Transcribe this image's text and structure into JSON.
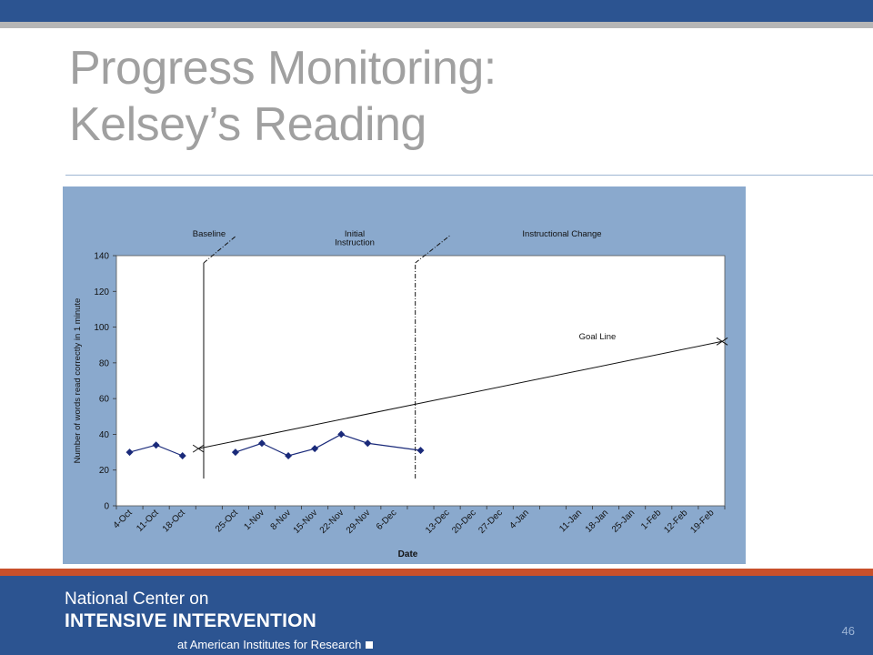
{
  "slide": {
    "title_line1": "Progress Monitoring:",
    "title_line2": "Kelsey’s Reading",
    "page_number": "46"
  },
  "footer": {
    "line1": "National Center on",
    "line2": "INTENSIVE INTERVENTION",
    "line3": "at American Institutes for Research"
  },
  "colors": {
    "header_bar": "#2c5491",
    "accent_stripe": "#c8502b",
    "chart_panel": "#8aa9cd",
    "data_marker": "#1a2a7a"
  },
  "chart_data": {
    "type": "line",
    "xlabel": "Date",
    "ylabel": "Number of words read correctly in 1 minute",
    "ylim": [
      0,
      140
    ],
    "yticks": [
      0,
      20,
      40,
      60,
      80,
      100,
      120,
      140
    ],
    "categories": [
      "4-Oct",
      "11-Oct",
      "18-Oct",
      "25-Oct",
      "1-Nov",
      "8-Nov",
      "15-Nov",
      "22-Nov",
      "29-Nov",
      "6-Dec",
      "13-Dec",
      "20-Dec",
      "27-Dec",
      "4-Jan",
      "11-Jan",
      "18-Jan",
      "25-Jan",
      "1-Feb",
      "12-Feb",
      "19-Feb"
    ],
    "x_slots": [
      0,
      1,
      2,
      4,
      5,
      6,
      7,
      8,
      9,
      10,
      12,
      13,
      14,
      15,
      17,
      18,
      19,
      20,
      21,
      22
    ],
    "slot_count": 23,
    "series": [
      {
        "segments": [
          {
            "x": [
              "4-Oct",
              "11-Oct",
              "18-Oct"
            ],
            "y": [
              30,
              34,
              28
            ]
          },
          {
            "x": [
              "1-Nov",
              "8-Nov",
              "15-Nov",
              "22-Nov",
              "29-Nov",
              "6-Dec",
              "13-Dec"
            ],
            "y": [
              30,
              35,
              28,
              32,
              40,
              35,
              31
            ]
          }
        ]
      }
    ],
    "goal_line": {
      "label": "Goal Line",
      "start": 32,
      "end": 92
    },
    "phases": [
      {
        "label": "Baseline"
      },
      {
        "label": "Initial\nInstruction"
      },
      {
        "label": "Instructional Change"
      }
    ],
    "grid": false,
    "legend": "none"
  }
}
